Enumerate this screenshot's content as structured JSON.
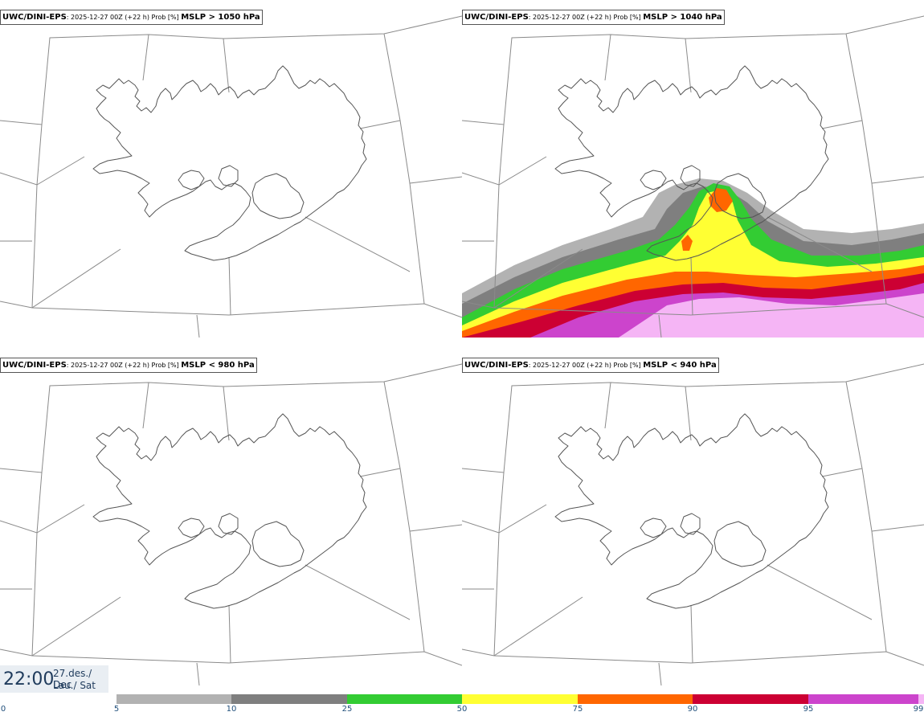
{
  "panels": [
    {
      "model": "UWC/DINI-EPS",
      "run": "2025-12-27 00Z",
      "lead": "(+22 h)",
      "quantity": "Prob [%]",
      "threshold": "MSLP > 1050 hPa",
      "has_field": false
    },
    {
      "model": "UWC/DINI-EPS",
      "run": "2025-12-27 00Z",
      "lead": "(+22 h)",
      "quantity": "Prob [%]",
      "threshold": "MSLP > 1040 hPa",
      "has_field": true
    },
    {
      "model": "UWC/DINI-EPS",
      "run": "2025-12-27 00Z",
      "lead": "(+22 h)",
      "quantity": "Prob [%]",
      "threshold": "MSLP < 980 hPa",
      "has_field": false
    },
    {
      "model": "UWC/DINI-EPS",
      "run": "2025-12-27 00Z",
      "lead": "(+22 h)",
      "quantity": "Prob [%]",
      "threshold": "MSLP < 940 hPa",
      "has_field": false
    }
  ],
  "timestamp": {
    "time": "22:00",
    "date_line1": "27.des./ Dec",
    "date_line2": "Lau./ Sat"
  },
  "colorbar": {
    "ticks": [
      "0",
      "5",
      "10",
      "25",
      "50",
      "75",
      "90",
      "95",
      "99"
    ],
    "bins": [
      {
        "from": 0,
        "to": 5,
        "color": "#ffffff"
      },
      {
        "from": 5,
        "to": 10,
        "color": "#b2b2b2"
      },
      {
        "from": 10,
        "to": 25,
        "color": "#7f7f7f"
      },
      {
        "from": 25,
        "to": 50,
        "color": "#33cc33"
      },
      {
        "from": 50,
        "to": 75,
        "color": "#ffff33"
      },
      {
        "from": 75,
        "to": 90,
        "color": "#ff6600"
      },
      {
        "from": 90,
        "to": 95,
        "color": "#cc0033"
      },
      {
        "from": 95,
        "to": 99,
        "color": "#cc44cc"
      },
      {
        "from": 99,
        "to": 100,
        "color": "#f5b5f5"
      }
    ]
  }
}
